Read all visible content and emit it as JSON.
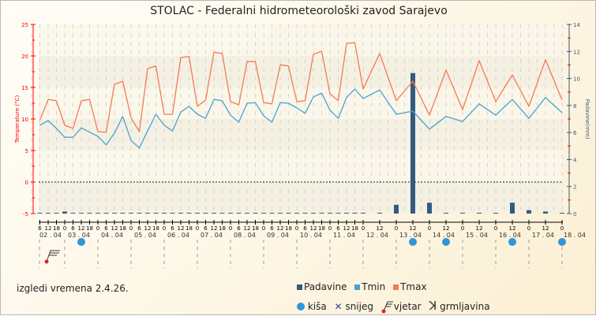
{
  "title": "STOLAC - Federalni hidrometeorološki zavod Sarajevo",
  "footer": "izgledi vremena 2.4.26.",
  "legend": {
    "padavine": "Padavine",
    "tmin": "Tmin",
    "tmax": "Tmax",
    "kisa": "kiša",
    "snijeg": "snijeg",
    "vjetar": "vjetar",
    "grmljavina": "grmljavina"
  },
  "colors": {
    "padavine": "#345a80",
    "tmin": "#4aa3d0",
    "tmax": "#f47a55",
    "rain": "#2f96dc",
    "axis_left": "#ff0000",
    "axis_right": "#345a80"
  },
  "chart_data": {
    "type": "line",
    "title": "STOLAC - Federalni hidrometeorološki zavod Sarajevo",
    "ylabel": "Temperature (°C)",
    "y2label": "Padavine(mm)",
    "ylim": [
      -5,
      25
    ],
    "y2lim": [
      0,
      14
    ],
    "yticks": [
      "25",
      "20",
      "15",
      "10",
      "5",
      "0",
      "-5"
    ],
    "y2ticks": [
      "14",
      "12",
      "10",
      "8",
      "6",
      "4",
      "2",
      "0"
    ],
    "x_hours": [
      6,
      12,
      18,
      24,
      30,
      36,
      42,
      48,
      54,
      60,
      66,
      72,
      78,
      84,
      90,
      96,
      102,
      108,
      114,
      120,
      126,
      132,
      138,
      144,
      150,
      156,
      162,
      168,
      174,
      180,
      186,
      192,
      198,
      204,
      210,
      216,
      222,
      228,
      234,
      240,
      252,
      264,
      276,
      288,
      300,
      312,
      324,
      336,
      348,
      360,
      372,
      384
    ],
    "series": [
      {
        "name": "Tmax",
        "values": [
          9.8,
          13.1,
          12.9,
          9,
          8.5,
          12.9,
          13.1,
          8,
          7.9,
          15.5,
          16,
          10.2,
          8,
          18,
          18.4,
          10.75,
          10.75,
          19.75,
          19.9,
          12,
          13,
          20.6,
          20.4,
          12.75,
          12.25,
          19.1,
          19.1,
          12.6,
          12.4,
          18.6,
          18.4,
          12.75,
          12.9,
          20.25,
          20.75,
          14,
          12.9,
          22,
          22.1,
          14.75,
          20.4,
          12.9,
          16,
          10.6,
          17.75,
          11.5,
          19.25,
          12.75,
          17,
          12,
          19.4,
          13
        ]
      },
      {
        "name": "Tmin",
        "values": [
          9,
          9.75,
          8.5,
          7.1,
          7.1,
          8.6,
          7.9,
          7.25,
          5.9,
          7.75,
          10.4,
          6.6,
          5.4,
          8.1,
          10.75,
          9,
          8.1,
          11.1,
          12,
          10.75,
          10.1,
          13.1,
          12.9,
          10.6,
          9.5,
          12.5,
          12.6,
          10.5,
          9.5,
          12.6,
          12.5,
          11.75,
          10.9,
          13.5,
          14.1,
          11.4,
          10.1,
          13.4,
          14.75,
          13.25,
          14.6,
          10.75,
          11.25,
          8.4,
          10.4,
          9.6,
          12.4,
          10.6,
          13.1,
          10.1,
          13.4,
          11
        ]
      },
      {
        "name": "Padavine",
        "values": [
          0,
          0,
          0,
          0.15,
          0,
          0,
          0,
          0,
          0,
          0,
          0,
          0,
          0,
          0,
          0,
          0,
          0,
          0,
          0,
          0,
          0,
          0,
          0,
          0,
          0,
          0,
          0,
          0,
          0,
          0,
          0,
          0,
          0,
          0,
          0,
          0,
          0,
          0,
          0,
          0,
          0,
          0.65,
          10.4,
          0.8,
          0,
          0,
          0,
          0,
          0.8,
          0.25,
          0.15,
          0
        ]
      }
    ],
    "days": [
      "02 . 04",
      "03 . 04",
      "04 . 04",
      "05 . 04",
      "06 . 04",
      "07 . 04",
      "08 . 04",
      "09 . 04",
      "10 . 04",
      "11 . 04",
      "12 . 04",
      "13 . 04",
      "14 . 04",
      "15 . 04",
      "16 . 04",
      "17 . 04",
      "18 . 04"
    ],
    "weather": [
      {
        "type": "vjetar",
        "hour": 12
      },
      {
        "type": "kisa",
        "hour": 36
      },
      {
        "type": "kisa",
        "hour": 276
      },
      {
        "type": "kisa",
        "hour": 300
      },
      {
        "type": "kisa",
        "hour": 348
      },
      {
        "type": "kisa",
        "hour": 384
      }
    ]
  }
}
